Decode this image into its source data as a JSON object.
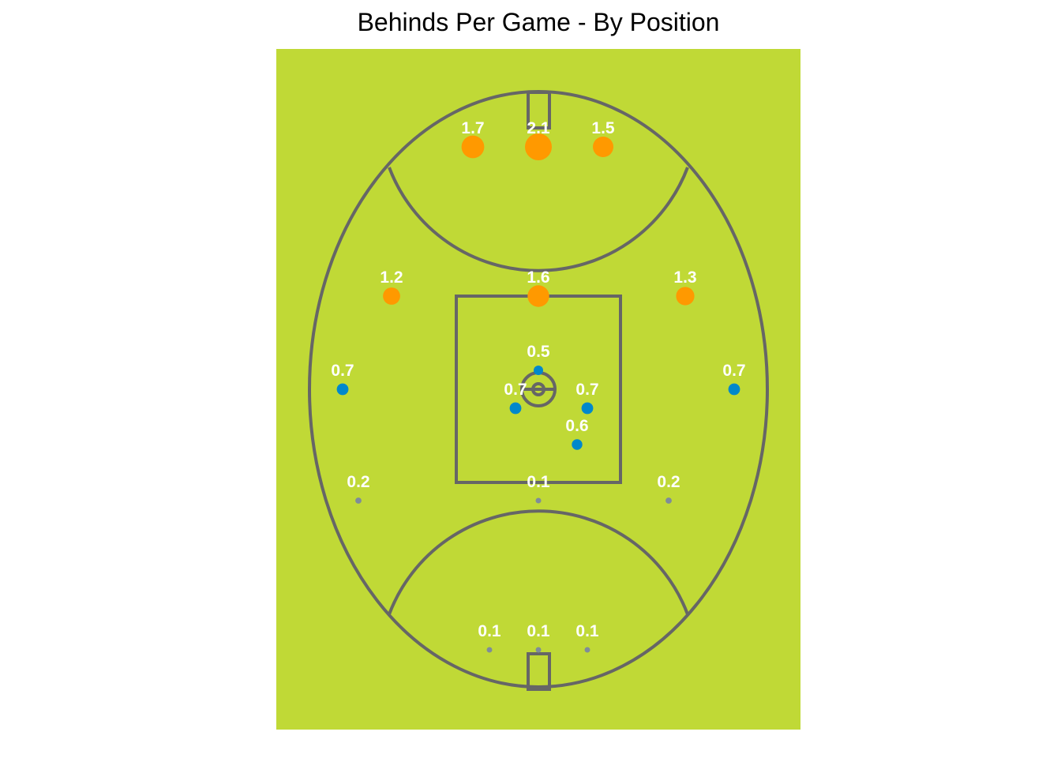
{
  "chart_data": {
    "type": "scatter",
    "title": "Behinds Per Game - By Position",
    "xlabel": "",
    "ylabel": "",
    "grid": false,
    "legend": "none",
    "colors": {
      "field": "#c0d936",
      "lines": "#666666",
      "high": "#ff9900",
      "mid": "#0088cc",
      "low": "#7f8c99",
      "label": "#ffffff"
    },
    "points": [
      {
        "value": 1.7,
        "group": "high"
      },
      {
        "value": 2.1,
        "group": "high"
      },
      {
        "value": 1.5,
        "group": "high"
      },
      {
        "value": 1.2,
        "group": "high"
      },
      {
        "value": 1.6,
        "group": "high"
      },
      {
        "value": 1.3,
        "group": "high"
      },
      {
        "value": 0.5,
        "group": "mid"
      },
      {
        "value": 0.7,
        "group": "mid"
      },
      {
        "value": 0.7,
        "group": "mid"
      },
      {
        "value": 0.7,
        "group": "mid"
      },
      {
        "value": 0.7,
        "group": "mid"
      },
      {
        "value": 0.6,
        "group": "mid"
      },
      {
        "value": 0.2,
        "group": "low"
      },
      {
        "value": 0.1,
        "group": "low"
      },
      {
        "value": 0.2,
        "group": "low"
      },
      {
        "value": 0.1,
        "group": "low"
      },
      {
        "value": 0.1,
        "group": "low"
      },
      {
        "value": 0.1,
        "group": "low"
      }
    ]
  }
}
